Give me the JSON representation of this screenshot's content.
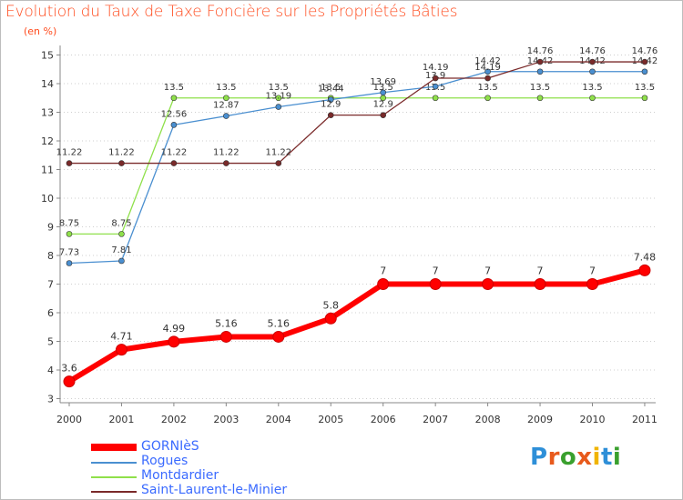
{
  "title": "Evolution du Taux de Taxe Foncière sur les Propriétés Bâties",
  "subtitle": "(en %)",
  "brand": {
    "text": "Proxiti",
    "colors": [
      "#2e8fd8",
      "#e85a1c",
      "#3aa02e",
      "#e85a1c",
      "#f0b400",
      "#2e8fd8",
      "#3aa02e"
    ]
  },
  "chart_data": {
    "type": "line",
    "title": "Evolution du Taux de Taxe Foncière sur les Propriétés Bâties",
    "ylabel": "(en %)",
    "xlabel": "",
    "x": [
      "2000",
      "2001",
      "2002",
      "2003",
      "2004",
      "2005",
      "2006",
      "2007",
      "2008",
      "2009",
      "2010",
      "2011"
    ],
    "yticks": [
      "3",
      "4",
      "5",
      "6",
      "7",
      "8",
      "9",
      "10",
      "11",
      "12",
      "13",
      "14",
      "15"
    ],
    "ylim": [
      3,
      15
    ],
    "grid": "horizontal-dotted",
    "legend_position": "bottom-left",
    "series": [
      {
        "name": "GORNIèS",
        "color": "#ff0000",
        "values": [
          3.6,
          4.71,
          4.99,
          5.16,
          5.16,
          5.8,
          7,
          7,
          7,
          7,
          7,
          7.48
        ],
        "labels": [
          "3.6",
          "4.71",
          "4.99",
          "5.16",
          "5.16",
          "5.8",
          "7",
          "7",
          "7",
          "7",
          "7",
          "7.48"
        ]
      },
      {
        "name": "Rogues",
        "color": "#4a8fd0",
        "values": [
          7.73,
          7.81,
          12.56,
          12.87,
          13.19,
          13.44,
          13.69,
          13.9,
          14.42,
          14.42,
          14.42,
          14.42
        ],
        "labels": [
          "7.73",
          "7.81",
          "12.56",
          "12.87",
          "13.19",
          "13.44",
          "13.69",
          "13.9",
          "14.42",
          "14.42",
          "14.42",
          "14.42"
        ]
      },
      {
        "name": "Montdardier",
        "color": "#8fe04a",
        "values": [
          8.75,
          8.75,
          13.5,
          13.5,
          13.5,
          13.5,
          13.5,
          13.5,
          13.5,
          13.5,
          13.5,
          13.5
        ],
        "labels": [
          "8.75",
          "8.75",
          "13.5",
          "13.5",
          "13.5",
          "13.5",
          "13.5",
          "13.5",
          "13.5",
          "13.5",
          "13.5",
          "13.5"
        ]
      },
      {
        "name": "Saint-Laurent-le-Minier",
        "color": "#7a2a2a",
        "values": [
          11.22,
          11.22,
          11.22,
          11.22,
          11.22,
          12.9,
          12.9,
          14.19,
          14.19,
          14.76,
          14.76,
          14.76
        ],
        "labels": [
          "11.22",
          "11.22",
          "11.22",
          "11.22",
          "11.22",
          "12.9",
          "12.9",
          "14.19",
          "14.19",
          "14.76",
          "14.76",
          "14.76"
        ]
      }
    ]
  }
}
